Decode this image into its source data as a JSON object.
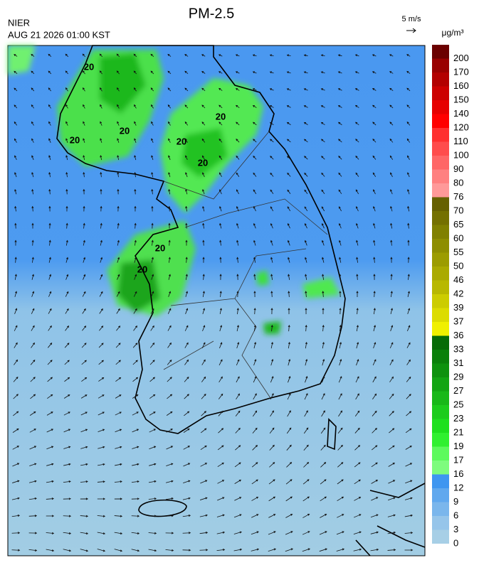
{
  "header": {
    "title": "PM-2.5",
    "agency": "NIER",
    "timestamp": "AUG 21 2026 01:00 KST",
    "wind_scale": "5 m/s",
    "unit": "μg/m³"
  },
  "legend": {
    "levels": [
      0,
      3,
      6,
      9,
      12,
      16,
      17,
      19,
      21,
      23,
      25,
      27,
      29,
      31,
      33,
      36,
      37,
      39,
      42,
      46,
      50,
      55,
      60,
      65,
      70,
      76,
      80,
      90,
      100,
      110,
      120,
      140,
      150,
      160,
      170,
      200
    ],
    "colors": [
      "#a7cfe6",
      "#96c5ea",
      "#7ab6ec",
      "#60a8ee",
      "#3e96f0",
      "#7efc7e",
      "#5dfa5d",
      "#30f030",
      "#1ee01e",
      "#1ccc1c",
      "#18b818",
      "#12a512",
      "#0e920e",
      "#0a800a",
      "#076b07",
      "#f0f000",
      "#dcdc00",
      "#cccc00",
      "#b8b800",
      "#aaaa00",
      "#9c9c00",
      "#8e8e00",
      "#808000",
      "#747000",
      "#666000",
      "#ff9999",
      "#ff8080",
      "#ff6666",
      "#ff4c4c",
      "#ff3030",
      "#ff0000",
      "#e60000",
      "#cc0000",
      "#b30000",
      "#990000",
      "#6b0000"
    ]
  },
  "map": {
    "contour_labels": [
      "20",
      "20",
      "20",
      "20",
      "20",
      "20",
      "20",
      "20"
    ]
  }
}
